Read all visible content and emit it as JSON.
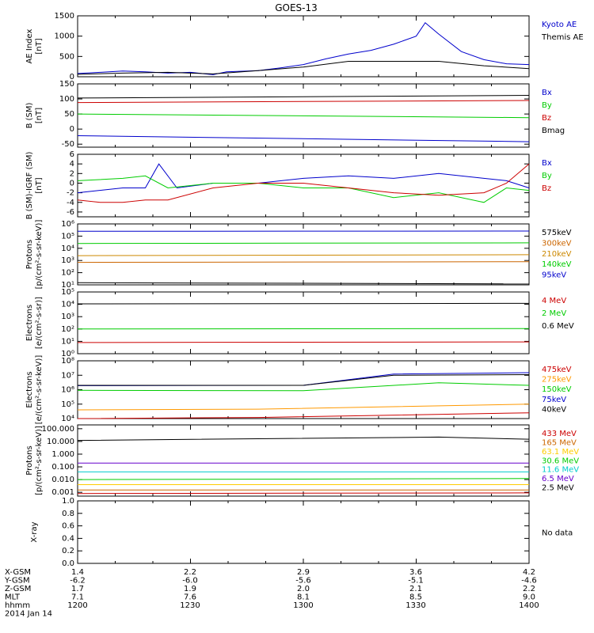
{
  "title": "GOES-13",
  "chart_data": [
    {
      "type": "line",
      "ylabel": "AE Index\n[nT]",
      "ylim": [
        0,
        1500
      ],
      "yticks": [
        "0",
        "500",
        "1000",
        "1500"
      ],
      "log": false,
      "series": [
        {
          "name": "Kyoto AE",
          "color": "#0000cc",
          "x": [
            0,
            0.05,
            0.1,
            0.15,
            0.2,
            0.25,
            0.3,
            0.33,
            0.4,
            0.45,
            0.5,
            0.55,
            0.6,
            0.65,
            0.7,
            0.75,
            0.77,
            0.8,
            0.85,
            0.9,
            0.95,
            1
          ],
          "y": [
            80,
            110,
            140,
            120,
            90,
            110,
            50,
            120,
            150,
            220,
            300,
            440,
            560,
            650,
            800,
            1000,
            1330,
            1050,
            620,
            420,
            320,
            300
          ]
        },
        {
          "name": "Themis AE",
          "color": "#000000",
          "x": [
            0,
            0.1,
            0.2,
            0.3,
            0.4,
            0.5,
            0.6,
            0.7,
            0.8,
            0.9,
            1
          ],
          "y": [
            60,
            90,
            110,
            70,
            150,
            240,
            380,
            380,
            380,
            270,
            200
          ]
        }
      ]
    },
    {
      "type": "line",
      "ylabel": "B (SM)\n[nT]",
      "ylim": [
        -60,
        150
      ],
      "yticks": [
        "-50",
        "0",
        "50",
        "100",
        "150"
      ],
      "log": false,
      "series": [
        {
          "name": "Bx",
          "color": "#0000cc",
          "x": [
            0,
            1
          ],
          "y": [
            -22,
            -42
          ]
        },
        {
          "name": "By",
          "color": "#00cc00",
          "x": [
            0,
            1
          ],
          "y": [
            50,
            38
          ]
        },
        {
          "name": "Bz",
          "color": "#cc0000",
          "x": [
            0,
            1
          ],
          "y": [
            88,
            95
          ]
        },
        {
          "name": "Bmag",
          "color": "#000000",
          "x": [
            0,
            1
          ],
          "y": [
            103,
            112
          ]
        }
      ]
    },
    {
      "type": "line",
      "ylabel": "B (SM)-IGRF (SM)\n[nT]",
      "ylim": [
        -7,
        6
      ],
      "yticks": [
        "-6",
        "-4",
        "-2",
        "0",
        "2",
        "4",
        "6"
      ],
      "log": false,
      "series": [
        {
          "name": "Bx",
          "color": "#0000cc",
          "x": [
            0,
            0.1,
            0.15,
            0.18,
            0.22,
            0.3,
            0.4,
            0.5,
            0.6,
            0.7,
            0.8,
            0.9,
            0.95,
            1
          ],
          "y": [
            -2,
            -1,
            -1,
            4,
            -1,
            0,
            0,
            1,
            1.5,
            1,
            2,
            1,
            0.5,
            -1
          ]
        },
        {
          "name": "By",
          "color": "#00cc00",
          "x": [
            0,
            0.1,
            0.15,
            0.2,
            0.3,
            0.4,
            0.5,
            0.6,
            0.7,
            0.8,
            0.9,
            0.95,
            1
          ],
          "y": [
            0.5,
            1,
            1.5,
            -1,
            0,
            0,
            -1,
            -1,
            -3,
            -2,
            -4,
            -1,
            -1.5
          ]
        },
        {
          "name": "Bz",
          "color": "#cc0000",
          "x": [
            0,
            0.05,
            0.1,
            0.15,
            0.2,
            0.3,
            0.4,
            0.5,
            0.6,
            0.7,
            0.8,
            0.9,
            0.95,
            1
          ],
          "y": [
            -3.5,
            -4,
            -4,
            -3.5,
            -3.5,
            -1,
            0,
            0,
            -1,
            -2,
            -2.5,
            -2,
            0,
            4
          ]
        }
      ]
    },
    {
      "type": "line",
      "ylabel": "Protons\n[p/(cm²-s-sr-keV)]",
      "ylim": [
        10,
        1000000
      ],
      "yticks": [
        "10¹",
        "10²",
        "10³",
        "10⁴",
        "10⁵",
        "10⁶"
      ],
      "log": true,
      "series": [
        {
          "name": "575keV",
          "color": "#000000",
          "x": [
            0,
            1
          ],
          "y": [
            15,
            12
          ]
        },
        {
          "name": "300keV",
          "color": "#cc6600",
          "x": [
            0,
            1
          ],
          "y": [
            700,
            800
          ]
        },
        {
          "name": "210keV",
          "color": "#cc8800",
          "x": [
            0,
            1
          ],
          "y": [
            2500,
            3000
          ]
        },
        {
          "name": "140keV",
          "color": "#00cc00",
          "x": [
            0,
            1
          ],
          "y": [
            25000,
            28000
          ]
        },
        {
          "name": "95keV",
          "color": "#0000cc",
          "x": [
            0,
            1
          ],
          "y": [
            250000,
            260000
          ]
        }
      ]
    },
    {
      "type": "line",
      "ylabel": "Electrons\n[e/(cm²-s-sr)]",
      "ylim": [
        1,
        100000
      ],
      "yticks": [
        "10⁰",
        "10¹",
        "10²",
        "10³",
        "10⁴",
        "10⁵"
      ],
      "log": true,
      "series": [
        {
          "name": "4 MeV",
          "color": "#cc0000",
          "x": [
            0,
            1
          ],
          "y": [
            8,
            9
          ]
        },
        {
          "name": "2 MeV",
          "color": "#00cc00",
          "x": [
            0,
            1
          ],
          "y": [
            100,
            110
          ]
        },
        {
          "name": "0.6 MeV",
          "color": "#000000",
          "x": [
            0,
            1
          ],
          "y": [
            11000,
            12000
          ]
        }
      ]
    },
    {
      "type": "line",
      "ylabel": "Electrons\n[e/(cm²-s-sr-keV)]",
      "ylim": [
        10000,
        100000000
      ],
      "yticks": [
        "10⁴",
        "10⁵",
        "10⁶",
        "10⁷",
        "10⁸"
      ],
      "log": true,
      "series": [
        {
          "name": "475keV",
          "color": "#cc0000",
          "x": [
            0,
            0.4,
            1
          ],
          "y": [
            10000,
            12000,
            25000
          ]
        },
        {
          "name": "275keV",
          "color": "#ff9900",
          "x": [
            0,
            0.4,
            1
          ],
          "y": [
            40000,
            45000,
            100000
          ]
        },
        {
          "name": "150keV",
          "color": "#00cc00",
          "x": [
            0,
            0.5,
            0.8,
            1
          ],
          "y": [
            900000,
            850000,
            3000000,
            2000000
          ]
        },
        {
          "name": "75keV",
          "color": "#0000cc",
          "x": [
            0,
            0.5,
            0.7,
            1
          ],
          "y": [
            1900000,
            2000000,
            12000000,
            15000000
          ]
        },
        {
          "name": "40keV",
          "color": "#000000",
          "x": [
            0,
            0.5,
            0.7,
            1
          ],
          "y": [
            2000000,
            2000000,
            10000000,
            11000000
          ]
        }
      ]
    },
    {
      "type": "line",
      "ylabel": "Protons\n[p/(cm²-s-sr-keV)]",
      "ylim": [
        0.0005,
        200
      ],
      "yticks": [
        "0.001",
        "0.010",
        "0.100",
        "1.000",
        "10.000",
        "100.000"
      ],
      "log": true,
      "series": [
        {
          "name": "433 MeV",
          "color": "#cc0000",
          "x": [
            0,
            1
          ],
          "y": [
            0.0008,
            0.0009
          ]
        },
        {
          "name": "165 MeV",
          "color": "#cc6600",
          "x": [
            0,
            1
          ],
          "y": [
            0.0015,
            0.0015
          ]
        },
        {
          "name": "63.1 MeV",
          "color": "#ffcc00",
          "x": [
            0,
            1
          ],
          "y": [
            0.004,
            0.004
          ]
        },
        {
          "name": "30.6 MeV",
          "color": "#00cc00",
          "x": [
            0,
            1
          ],
          "y": [
            0.01,
            0.012
          ]
        },
        {
          "name": "11.6 MeV",
          "color": "#00cccc",
          "x": [
            0,
            1
          ],
          "y": [
            0.04,
            0.04
          ]
        },
        {
          "name": "6.5 MeV",
          "color": "#6600cc",
          "x": [
            0,
            1
          ],
          "y": [
            0.2,
            0.2
          ]
        },
        {
          "name": "2.5 MeV",
          "color": "#000000",
          "x": [
            0,
            0.8,
            1
          ],
          "y": [
            12,
            22,
            15
          ]
        }
      ]
    },
    {
      "type": "line",
      "ylabel": "X-ray",
      "ylim": [
        0,
        1
      ],
      "yticks": [
        "0.0",
        "0.2",
        "0.4",
        "0.6",
        "0.8",
        "1.0"
      ],
      "log": false,
      "note": "No data",
      "series": []
    }
  ],
  "ephemeris": {
    "labels": [
      "X-GSM",
      "Y-GSM",
      "Z-GSM",
      "MLT",
      "hhmm",
      "2014 Jan 14"
    ],
    "columns": [
      [
        "1.4",
        "-6.2",
        "1.7",
        "7.1",
        "1200"
      ],
      [
        "2.2",
        "-6.0",
        "1.9",
        "7.6",
        "1230"
      ],
      [
        "2.9",
        "-5.6",
        "2.0",
        "8.1",
        "1300"
      ],
      [
        "3.6",
        "-5.1",
        "2.1",
        "8.5",
        "1330"
      ],
      [
        "4.2",
        "-4.6",
        "2.2",
        "9.0",
        "1400"
      ]
    ]
  }
}
